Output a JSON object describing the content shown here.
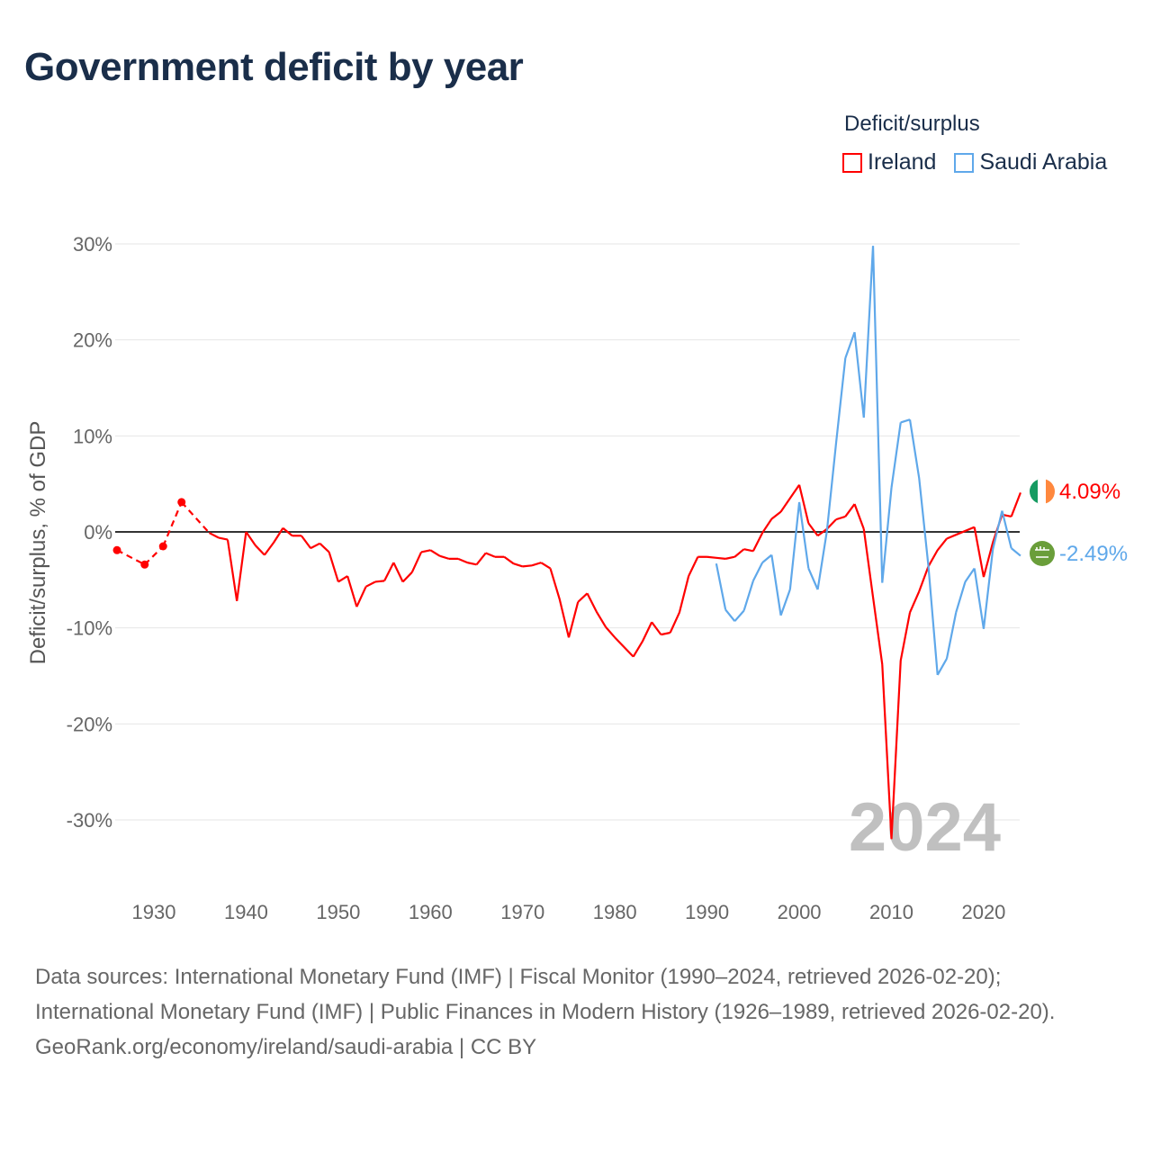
{
  "title": "Government deficit by year",
  "legend": {
    "title": "Deficit/surplus",
    "items": [
      "Ireland",
      "Saudi Arabia"
    ]
  },
  "year_label": "2024",
  "end_labels": {
    "ireland": "4.09%",
    "saudi": "-2.49%"
  },
  "footer": {
    "sources": "Data sources: International Monetary Fund (IMF) | Fiscal Monitor (1990–2024, retrieved 2026-02-20); International Monetary Fund (IMF) | Public Finances in Modern History (1926–1989, retrieved 2026-02-20).",
    "credit": "GeoRank.org/economy/ireland/saudi-arabia | CC BY"
  },
  "chart_data": {
    "type": "line",
    "title": "Government deficit by year",
    "xlabel": "",
    "ylabel": "Deficit/surplus, % of GDP",
    "xlim": [
      1926,
      2024
    ],
    "ylim": [
      -33,
      30
    ],
    "yticks": [
      30,
      20,
      10,
      0,
      -10,
      -20,
      -30
    ],
    "ytick_labels": [
      "30%",
      "20%",
      "10%",
      "0%",
      "-10%",
      "-20%",
      "-30%"
    ],
    "xticks": [
      1930,
      1940,
      1950,
      1960,
      1970,
      1980,
      1990,
      2000,
      2010,
      2020
    ],
    "xtick_labels": [
      "1930",
      "1940",
      "1950",
      "1960",
      "1970",
      "1980",
      "1990",
      "2000",
      "2010",
      "2020"
    ],
    "grid": true,
    "legend_position": "top-right",
    "series": [
      {
        "name": "Ireland",
        "color": "#ff0000",
        "points": [
          [
            1926,
            -1.9
          ],
          [
            1929,
            -3.4
          ],
          [
            1931,
            -1.5
          ],
          [
            1933,
            3.1
          ],
          [
            1936,
            -0.1
          ],
          [
            1937,
            -0.6
          ],
          [
            1938,
            -0.8
          ],
          [
            1939,
            -7.2
          ],
          [
            1940,
            0.0
          ],
          [
            1941,
            -1.4
          ],
          [
            1942,
            -2.4
          ],
          [
            1943,
            -1.1
          ],
          [
            1944,
            0.4
          ],
          [
            1945,
            -0.4
          ],
          [
            1946,
            -0.4
          ],
          [
            1947,
            -1.7
          ],
          [
            1948,
            -1.2
          ],
          [
            1949,
            -2.1
          ],
          [
            1950,
            -5.2
          ],
          [
            1951,
            -4.6
          ],
          [
            1952,
            -7.8
          ],
          [
            1953,
            -5.7
          ],
          [
            1954,
            -5.2
          ],
          [
            1955,
            -5.1
          ],
          [
            1956,
            -3.2
          ],
          [
            1957,
            -5.2
          ],
          [
            1958,
            -4.2
          ],
          [
            1959,
            -2.1
          ],
          [
            1960,
            -1.9
          ],
          [
            1961,
            -2.5
          ],
          [
            1962,
            -2.8
          ],
          [
            1963,
            -2.8
          ],
          [
            1964,
            -3.2
          ],
          [
            1965,
            -3.4
          ],
          [
            1966,
            -2.2
          ],
          [
            1967,
            -2.6
          ],
          [
            1968,
            -2.6
          ],
          [
            1969,
            -3.3
          ],
          [
            1970,
            -3.6
          ],
          [
            1971,
            -3.5
          ],
          [
            1972,
            -3.2
          ],
          [
            1973,
            -3.8
          ],
          [
            1974,
            -7.0
          ],
          [
            1975,
            -11.0
          ],
          [
            1976,
            -7.3
          ],
          [
            1977,
            -6.4
          ],
          [
            1978,
            -8.3
          ],
          [
            1979,
            -9.9
          ],
          [
            1980,
            -11.0
          ],
          [
            1981,
            -12.0
          ],
          [
            1982,
            -13.0
          ],
          [
            1983,
            -11.4
          ],
          [
            1984,
            -9.4
          ],
          [
            1985,
            -10.7
          ],
          [
            1986,
            -10.5
          ],
          [
            1987,
            -8.4
          ],
          [
            1988,
            -4.6
          ],
          [
            1989,
            -2.6
          ],
          [
            1990,
            -2.6
          ],
          [
            1991,
            -2.7
          ],
          [
            1992,
            -2.8
          ],
          [
            1993,
            -2.6
          ],
          [
            1994,
            -1.8
          ],
          [
            1995,
            -2.0
          ],
          [
            1996,
            -0.1
          ],
          [
            1997,
            1.35
          ],
          [
            1998,
            2.1
          ],
          [
            1999,
            3.5
          ],
          [
            2000,
            4.9
          ],
          [
            2001,
            0.9
          ],
          [
            2002,
            -0.4
          ],
          [
            2003,
            0.3
          ],
          [
            2004,
            1.3
          ],
          [
            2005,
            1.6
          ],
          [
            2006,
            2.9
          ],
          [
            2007,
            0.3
          ],
          [
            2008,
            -6.8
          ],
          [
            2009,
            -13.8
          ],
          [
            2010,
            -32.0
          ],
          [
            2011,
            -13.4
          ],
          [
            2012,
            -8.4
          ],
          [
            2013,
            -6.2
          ],
          [
            2014,
            -3.6
          ],
          [
            2015,
            -1.9
          ],
          [
            2016,
            -0.7
          ],
          [
            2017,
            -0.3
          ],
          [
            2018,
            0.1
          ],
          [
            2019,
            0.5
          ],
          [
            2020,
            -4.7
          ],
          [
            2021,
            -1.1
          ],
          [
            2022,
            1.8
          ],
          [
            2023,
            1.6
          ],
          [
            2024,
            4.09
          ]
        ]
      },
      {
        "name": "Saudi Arabia",
        "color": "#5fa8ea",
        "points": [
          [
            1991,
            -3.3
          ],
          [
            1992,
            -8.1
          ],
          [
            1993,
            -9.3
          ],
          [
            1994,
            -8.2
          ],
          [
            1995,
            -5.1
          ],
          [
            1996,
            -3.2
          ],
          [
            1997,
            -2.4
          ],
          [
            1998,
            -8.7
          ],
          [
            1999,
            -6.0
          ],
          [
            2000,
            3.1
          ],
          [
            2001,
            -3.8
          ],
          [
            2002,
            -6.0
          ],
          [
            2003,
            0.1
          ],
          [
            2004,
            9.3
          ],
          [
            2005,
            18.1
          ],
          [
            2006,
            20.8
          ],
          [
            2007,
            11.9
          ],
          [
            2008,
            29.8
          ],
          [
            2009,
            -5.3
          ],
          [
            2010,
            4.6
          ],
          [
            2011,
            11.4
          ],
          [
            2012,
            11.7
          ],
          [
            2013,
            5.6
          ],
          [
            2014,
            -3.5
          ],
          [
            2015,
            -14.9
          ],
          [
            2016,
            -13.2
          ],
          [
            2017,
            -8.4
          ],
          [
            2018,
            -5.2
          ],
          [
            2019,
            -3.8
          ],
          [
            2020,
            -10.1
          ],
          [
            2021,
            -1.8
          ],
          [
            2022,
            2.2
          ],
          [
            2023,
            -1.7
          ],
          [
            2024,
            -2.49
          ]
        ]
      }
    ]
  }
}
